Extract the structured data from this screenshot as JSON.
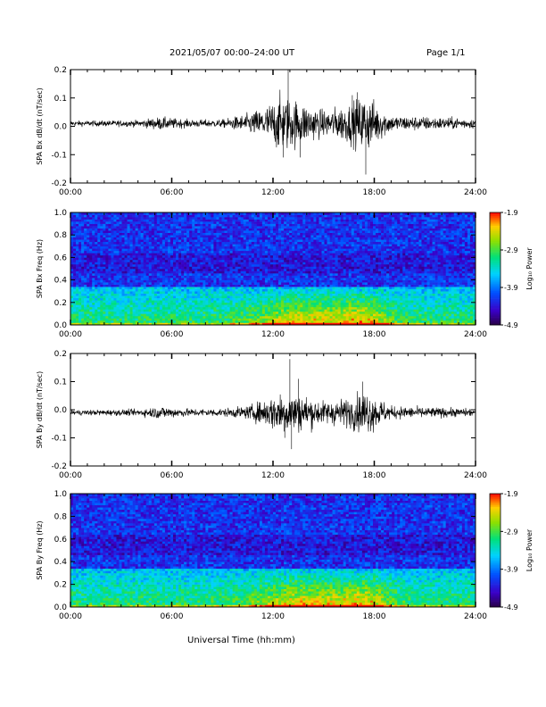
{
  "header": {
    "title": "2021/05/07  00:00–24:00 UT",
    "page": "Page 1/1"
  },
  "x_axis_title": "Universal Time (hh:mm)",
  "chart_data": [
    {
      "type": "line",
      "ylabel": "SPA Bx dB/dt (nT/sec)",
      "ylim": [
        -0.2,
        0.2
      ],
      "yticks": [
        "-0.2",
        "-0.1",
        "0.0",
        "0.1",
        "0.2"
      ],
      "xlim": [
        "00:00",
        "24:00"
      ],
      "xticks": [
        "00:00",
        "06:00",
        "12:00",
        "18:00",
        "24:00"
      ],
      "baseline": 0.01,
      "envelope": [
        {
          "x": 0,
          "amp": 0.008
        },
        {
          "x": 4,
          "amp": 0.01
        },
        {
          "x": 5.3,
          "amp": 0.02
        },
        {
          "x": 7,
          "amp": 0.012
        },
        {
          "x": 9,
          "amp": 0.012
        },
        {
          "x": 10.5,
          "amp": 0.03
        },
        {
          "x": 11.5,
          "amp": 0.05
        },
        {
          "x": 12.5,
          "amp": 0.09
        },
        {
          "x": 13.5,
          "amp": 0.07
        },
        {
          "x": 15,
          "amp": 0.04
        },
        {
          "x": 16.5,
          "amp": 0.06
        },
        {
          "x": 17.5,
          "amp": 0.09
        },
        {
          "x": 19,
          "amp": 0.025
        },
        {
          "x": 24,
          "amp": 0.015
        }
      ],
      "peaks": [
        {
          "x": 12.9,
          "y": 0.2
        },
        {
          "x": 12.6,
          "y": -0.11
        },
        {
          "x": 13.6,
          "y": -0.11
        },
        {
          "x": 17.5,
          "y": -0.17
        },
        {
          "x": 17.0,
          "y": 0.12
        },
        {
          "x": 16.7,
          "y": 0.11
        }
      ]
    },
    {
      "type": "heatmap",
      "ylabel": "SPA Bx Freq (Hz)",
      "ylim": [
        0.0,
        1.0
      ],
      "yticks": [
        "0.0",
        "0.2",
        "0.4",
        "0.6",
        "0.8",
        "1.0"
      ],
      "xlim": [
        "00:00",
        "24:00"
      ],
      "xticks": [
        "00:00",
        "06:00",
        "12:00",
        "18:00",
        "24:00"
      ],
      "colorbar": {
        "label": "Log₁₀ Power",
        "range": [
          -4.9,
          -1.9
        ],
        "ticks": [
          "-1.9",
          "-2.9",
          "-3.9",
          "-4.9"
        ]
      }
    },
    {
      "type": "line",
      "ylabel": "SPA By dB/dt (nT/sec)",
      "ylim": [
        -0.2,
        0.2
      ],
      "yticks": [
        "-0.2",
        "-0.1",
        "0.0",
        "0.1",
        "0.2"
      ],
      "xlim": [
        "00:00",
        "24:00"
      ],
      "xticks": [
        "00:00",
        "06:00",
        "12:00",
        "18:00",
        "24:00"
      ],
      "baseline": -0.01,
      "envelope": [
        {
          "x": 0,
          "amp": 0.008
        },
        {
          "x": 4,
          "amp": 0.01
        },
        {
          "x": 5.3,
          "amp": 0.02
        },
        {
          "x": 7,
          "amp": 0.012
        },
        {
          "x": 9,
          "amp": 0.012
        },
        {
          "x": 10.5,
          "amp": 0.02
        },
        {
          "x": 11.5,
          "amp": 0.04
        },
        {
          "x": 12.5,
          "amp": 0.07
        },
        {
          "x": 13.5,
          "amp": 0.06
        },
        {
          "x": 15,
          "amp": 0.035
        },
        {
          "x": 16.5,
          "amp": 0.045
        },
        {
          "x": 17.5,
          "amp": 0.07
        },
        {
          "x": 19,
          "amp": 0.02
        },
        {
          "x": 24,
          "amp": 0.012
        }
      ],
      "peaks": [
        {
          "x": 13.0,
          "y": 0.18
        },
        {
          "x": 13.1,
          "y": -0.14
        },
        {
          "x": 12.7,
          "y": -0.1
        },
        {
          "x": 17.3,
          "y": 0.1
        },
        {
          "x": 13.5,
          "y": 0.11
        }
      ]
    },
    {
      "type": "heatmap",
      "ylabel": "SPA By Freq (Hz)",
      "ylim": [
        0.0,
        1.0
      ],
      "yticks": [
        "0.0",
        "0.2",
        "0.4",
        "0.6",
        "0.8",
        "1.0"
      ],
      "xlim": [
        "00:00",
        "24:00"
      ],
      "xticks": [
        "00:00",
        "06:00",
        "12:00",
        "18:00",
        "24:00"
      ],
      "colorbar": {
        "label": "Log₁₀ Power",
        "range": [
          -4.9,
          -1.9
        ],
        "ticks": [
          "-1.9",
          "-2.9",
          "-3.9",
          "-4.9"
        ]
      }
    }
  ]
}
